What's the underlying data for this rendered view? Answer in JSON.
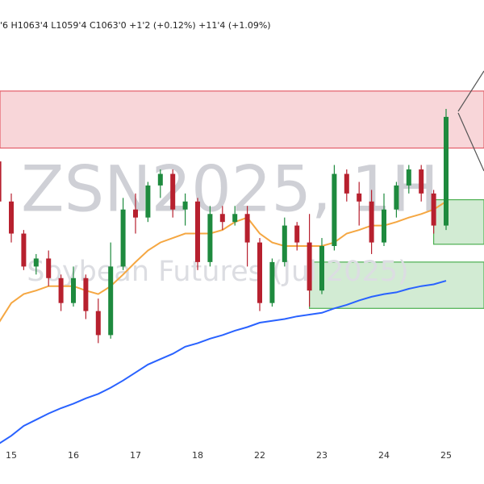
{
  "chart_data": {
    "type": "candlestick",
    "header": "'6 H1063'4 L1059'4 C1063'0 +1'2 (+0.12%) +11'4 (+1.09%)",
    "watermark": "ZSN2025, 1H",
    "watermark_subtitle": "Soybean Futures (Jul 2025)",
    "categories": [
      null,
      "15",
      null,
      null,
      null,
      null,
      "16",
      null,
      null,
      null,
      null,
      "17",
      null,
      null,
      null,
      null,
      "18",
      null,
      null,
      null,
      null,
      "22",
      null,
      null,
      null,
      null,
      "23",
      null,
      null,
      null,
      null,
      "24",
      null,
      null,
      null,
      null,
      "25"
    ],
    "open": [
      1057.5,
      1053.0,
      1049.4,
      1045.7,
      1046.6,
      1044.4,
      1041.6,
      1044.4,
      1040.7,
      1038.0,
      1045.7,
      1052.1,
      1051.2,
      1054.8,
      1056.1,
      1052.1,
      1053.0,
      1046.2,
      1051.6,
      1050.7,
      1051.6,
      1048.4,
      1041.6,
      1046.2,
      1050.3,
      1048.4,
      1043.0,
      1048.0,
      1056.1,
      1053.9,
      1053.0,
      1048.4,
      1052.1,
      1054.8,
      1056.6,
      1053.9,
      1050.3
    ],
    "high": [
      1058.9,
      1053.9,
      1049.8,
      1047.1,
      1047.5,
      1044.8,
      1045.7,
      1044.8,
      1042.1,
      1048.4,
      1053.4,
      1053.9,
      1055.2,
      1056.6,
      1056.6,
      1053.9,
      1053.4,
      1052.5,
      1052.5,
      1052.5,
      1052.5,
      1048.9,
      1046.6,
      1051.2,
      1050.7,
      1051.6,
      1048.9,
      1057.1,
      1056.6,
      1055.2,
      1054.3,
      1053.9,
      1055.2,
      1057.1,
      1057.1,
      1054.3,
      1063.4
    ],
    "low": [
      1052.5,
      1048.4,
      1045.3,
      1044.8,
      1043.5,
      1040.7,
      1041.2,
      1039.8,
      1037.1,
      1037.6,
      1045.3,
      1049.4,
      1050.7,
      1053.4,
      1051.2,
      1050.3,
      1045.3,
      1045.7,
      1049.8,
      1050.3,
      1045.7,
      1040.7,
      1041.2,
      1045.7,
      1047.5,
      1041.2,
      1042.6,
      1047.5,
      1053.0,
      1050.3,
      1047.1,
      1048.0,
      1051.2,
      1053.9,
      1053.0,
      1049.4,
      1049.8
    ],
    "close": [
      1053.0,
      1049.4,
      1045.7,
      1046.6,
      1044.4,
      1041.6,
      1044.4,
      1040.7,
      1038.0,
      1045.7,
      1052.1,
      1051.2,
      1054.8,
      1056.1,
      1052.1,
      1053.0,
      1046.2,
      1051.6,
      1050.7,
      1051.6,
      1048.4,
      1041.6,
      1046.2,
      1050.3,
      1048.4,
      1043.0,
      1048.0,
      1056.1,
      1053.9,
      1053.0,
      1048.4,
      1052.1,
      1054.8,
      1056.6,
      1053.9,
      1050.3,
      1062.5
    ],
    "up_color": "#1e8a3e",
    "down_color": "#b7202e",
    "series": [
      {
        "color": "#f5a742",
        "values": [
          1039.4,
          1041.6,
          1042.6,
          1043.0,
          1043.5,
          1043.5,
          1043.5,
          1043.0,
          1042.6,
          1043.5,
          1044.8,
          1046.2,
          1047.5,
          1048.4,
          1048.9,
          1049.4,
          1049.4,
          1049.4,
          1049.8,
          1050.7,
          1051.2,
          1049.4,
          1048.4,
          1048.0,
          1048.0,
          1048.0,
          1048.0,
          1048.4,
          1049.4,
          1049.8,
          1050.3,
          1050.3,
          1050.7,
          1051.2,
          1051.6,
          1052.1,
          1053.0
        ]
      },
      {
        "color": "#2962ff",
        "values": [
          1025.8,
          1026.7,
          1027.8,
          1028.5,
          1029.2,
          1029.8,
          1030.3,
          1030.9,
          1031.4,
          1032.1,
          1032.9,
          1033.8,
          1034.7,
          1035.3,
          1035.9,
          1036.7,
          1037.1,
          1037.6,
          1038.0,
          1038.5,
          1038.9,
          1039.4,
          1039.6,
          1039.8,
          1040.1,
          1040.3,
          1040.5,
          1041.0,
          1041.4,
          1041.9,
          1042.3,
          1042.6,
          1042.8,
          1043.2,
          1043.5,
          1043.7,
          1044.1
        ]
      }
    ],
    "zones": [
      {
        "y": [
          1059.0,
          1065.4
        ],
        "color": "#e35d68"
      },
      {
        "y": [
          1048.2,
          1053.2
        ],
        "from": 35,
        "color": "#4caf50"
      },
      {
        "y": [
          1041.0,
          1046.2
        ],
        "from": 25,
        "color": "#4caf50"
      }
    ],
    "ylim": [
      1024,
      1072
    ]
  }
}
